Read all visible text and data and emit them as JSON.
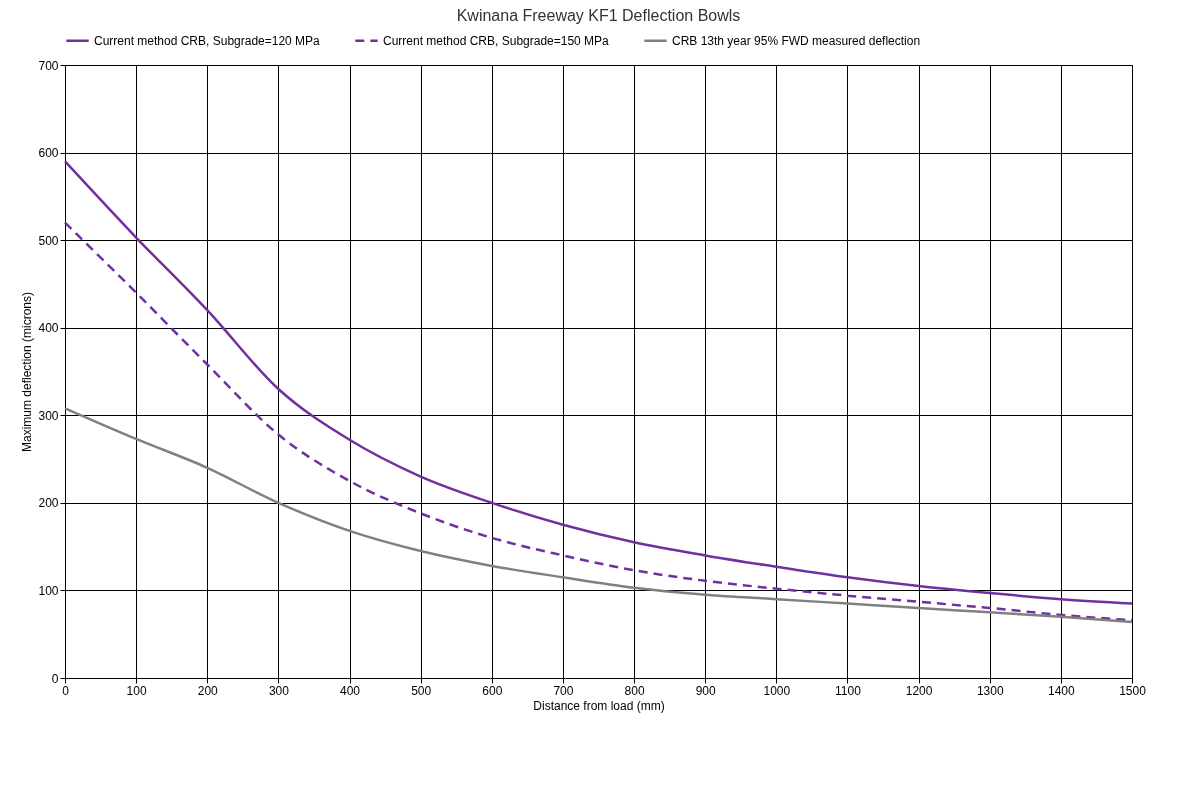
{
  "chart_data": {
    "type": "line",
    "title": "Kwinana Freeway KF1 Deflection Bowls",
    "xlabel": "Distance from load (mm)",
    "ylabel": "Maximum deflection (microns)",
    "x": [
      0,
      100,
      200,
      300,
      400,
      500,
      600,
      700,
      800,
      900,
      1000,
      1100,
      1200,
      1300,
      1400,
      1500
    ],
    "series": [
      {
        "name": "Current method CRB, Subgrade=120 MPa",
        "color": "#7030a0",
        "line_style": "solid",
        "values": [
          590,
          503,
          420,
          330,
          272,
          230,
          200,
          175,
          155,
          140,
          127,
          115,
          105,
          97,
          90,
          85
        ]
      },
      {
        "name": "Current method CRB, Subgrade=150 MPa",
        "color": "#7030a0",
        "line_style": "dashed",
        "values": [
          520,
          440,
          358,
          278,
          225,
          188,
          160,
          140,
          123,
          111,
          102,
          94,
          87,
          80,
          72,
          66
        ]
      },
      {
        "name": "CRB 13th year 95% FWD measured deflection",
        "color": "#808080",
        "line_style": "solid",
        "values": [
          308,
          273,
          240,
          200,
          168,
          145,
          128,
          115,
          103,
          95,
          90,
          85,
          80,
          75,
          70,
          64
        ]
      }
    ],
    "xlim": [
      0,
      1500
    ],
    "xticks": [
      0,
      100,
      200,
      300,
      400,
      500,
      600,
      700,
      800,
      900,
      1000,
      1100,
      1200,
      1300,
      1400,
      1500
    ],
    "ylim": [
      0,
      700
    ],
    "yticks": [
      0,
      100,
      200,
      300,
      400,
      500,
      600,
      700
    ],
    "grid": true,
    "legend": "top",
    "marker": "none"
  }
}
